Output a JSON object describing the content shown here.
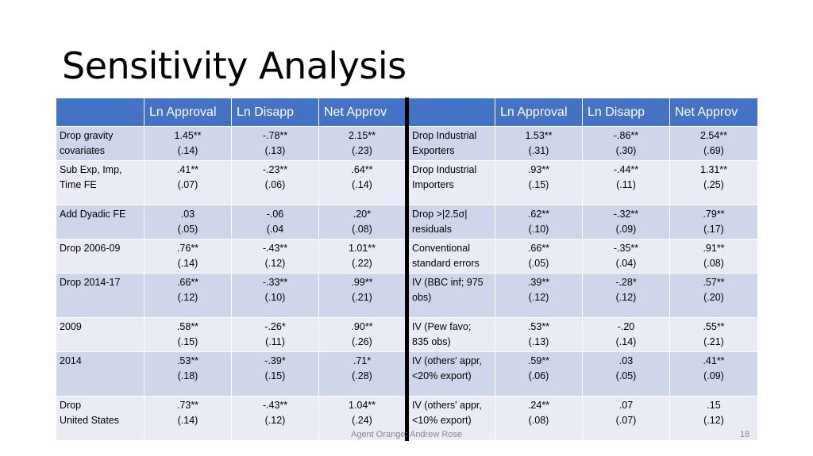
{
  "title": "Sensitivity Analysis",
  "headers": [
    "",
    "Ln Approval",
    "Ln Disapp",
    "Net Approv",
    "",
    "Ln Approval",
    "Ln Disapp",
    "Net Approv"
  ],
  "left": [
    {
      "label": [
        "Drop gravity",
        "covariates"
      ],
      "vals": [
        [
          "1.45**",
          "(.14)"
        ],
        [
          "-.78**",
          "(.13)"
        ],
        [
          "2.15**",
          "(.23)"
        ]
      ]
    },
    {
      "label": [
        "Sub Exp, Imp,",
        "Time FE"
      ],
      "vals": [
        [
          ".41**",
          "(.07)"
        ],
        [
          "-.23**",
          "(.06)"
        ],
        [
          ".64**",
          "(.14)"
        ]
      ]
    },
    {
      "label": [
        "Add Dyadic FE",
        ""
      ],
      "vals": [
        [
          ".03",
          "(.05)"
        ],
        [
          "-.06",
          "(.04"
        ],
        [
          ".20*",
          "(.08)"
        ]
      ]
    },
    {
      "label": [
        "Drop 2006-09",
        ""
      ],
      "vals": [
        [
          ".76**",
          "(.14)"
        ],
        [
          "-.43**",
          "(.12)"
        ],
        [
          "1.01**",
          "(.22)"
        ]
      ]
    },
    {
      "label": [
        "Drop 2014-17",
        ""
      ],
      "vals": [
        [
          ".66**",
          "(.12)"
        ],
        [
          "-.33**",
          "(.10)"
        ],
        [
          ".99**",
          "(.21)"
        ]
      ]
    },
    {
      "label": [
        "2009",
        ""
      ],
      "vals": [
        [
          ".58**",
          "(.15)"
        ],
        [
          "-.26*",
          "(.11)"
        ],
        [
          ".90**",
          "(.26)"
        ]
      ]
    },
    {
      "label": [
        "2014",
        ""
      ],
      "vals": [
        [
          ".53**",
          "(.18)"
        ],
        [
          "-.39*",
          "(.15)"
        ],
        [
          ".71*",
          "(.28)"
        ]
      ]
    },
    {
      "label": [
        "Drop",
        "United States"
      ],
      "vals": [
        [
          ".73**",
          "(.14)"
        ],
        [
          "-.43**",
          "(.12)"
        ],
        [
          "1.04**",
          "(.24)"
        ]
      ]
    }
  ],
  "right": [
    {
      "label": [
        "Drop Industrial",
        "Exporters"
      ],
      "vals": [
        [
          "1.53**",
          "(.31)"
        ],
        [
          "-.86**",
          "(.30)"
        ],
        [
          "2.54**",
          "(.69)"
        ]
      ]
    },
    {
      "label": [
        "Drop Industrial",
        "Importers"
      ],
      "vals": [
        [
          ".93**",
          "(.15)"
        ],
        [
          "-.44**",
          "(.11)"
        ],
        [
          "1.31**",
          "(.25)"
        ]
      ]
    },
    {
      "label": [
        "Drop >|2.5σ|",
        "residuals"
      ],
      "vals": [
        [
          ".62**",
          "(.10)"
        ],
        [
          "-.32**",
          "(.09)"
        ],
        [
          ".79**",
          "(.17)"
        ]
      ]
    },
    {
      "label": [
        "Conventional",
        "standard errors"
      ],
      "vals": [
        [
          ".66**",
          "(.05)"
        ],
        [
          "-.35**",
          "(.04)"
        ],
        [
          ".91**",
          "(.08)"
        ]
      ]
    },
    {
      "label": [
        "IV (BBC inf; 975",
        "obs)"
      ],
      "vals": [
        [
          ".39**",
          "(.12)"
        ],
        [
          "-.28*",
          "(.12)"
        ],
        [
          ".57**",
          "(.20)"
        ]
      ]
    },
    {
      "label": [
        "IV (Pew favo;",
        "835 obs)"
      ],
      "vals": [
        [
          ".53**",
          "(.13)"
        ],
        [
          "-.20",
          "(.14)"
        ],
        [
          ".55**",
          "(.21)"
        ]
      ]
    },
    {
      "label": [
        "IV (others' appr,",
        "<20% export)"
      ],
      "vals": [
        [
          ".59**",
          "(.06)"
        ],
        [
          ".03",
          "(.05)"
        ],
        [
          ".41**",
          "(.09)"
        ]
      ]
    },
    {
      "label": [
        "IV (others' appr,",
        "<10% export)"
      ],
      "vals": [
        [
          ".24**",
          "(.08)"
        ],
        [
          ".07",
          "(.07)"
        ],
        [
          ".15",
          "(.12)"
        ]
      ]
    }
  ],
  "footer": "Agent Orange: Andrew Rose",
  "page_number": "18"
}
